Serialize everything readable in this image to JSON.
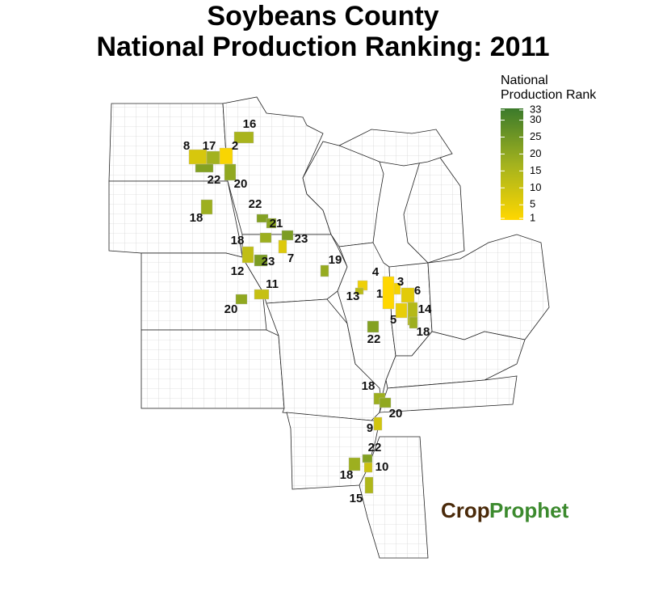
{
  "title": [
    "Soybeans County",
    "National Production Ranking: 2011"
  ],
  "legend": {
    "title": [
      "National",
      "Production Rank"
    ],
    "lim": [
      1,
      33
    ],
    "ticks": [
      1,
      5,
      10,
      15,
      20,
      25,
      30,
      33
    ],
    "colors": [
      "#ffd700",
      "#a3b21e",
      "#3b7a2b"
    ]
  },
  "ranks": [
    16,
    8,
    17,
    2,
    22,
    20,
    22,
    18,
    21,
    23,
    18,
    7,
    23,
    12,
    19,
    11,
    20,
    4,
    3,
    13,
    1,
    6,
    14,
    5,
    18,
    22,
    18,
    20,
    9,
    22,
    10,
    18,
    15
  ],
  "logo": [
    "Crop",
    "Prophet"
  ]
}
